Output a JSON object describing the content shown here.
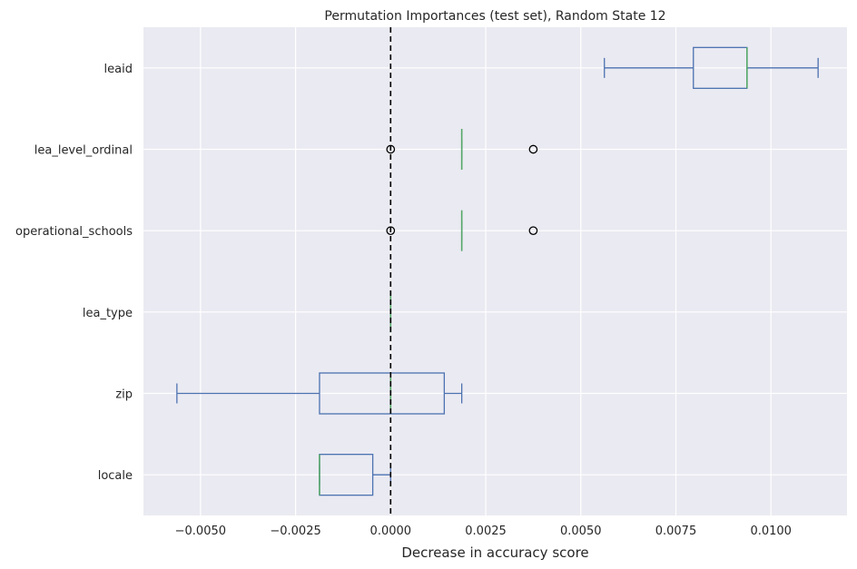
{
  "chart_data": {
    "type": "boxplot",
    "orientation": "horizontal",
    "title": "Permutation Importances (test set), Random State 12",
    "xlabel": "Decrease in accuracy score",
    "ylabel": "",
    "xlim": [
      -0.0065,
      0.012
    ],
    "xticks": [
      -0.005,
      -0.0025,
      0.0,
      0.0025,
      0.005,
      0.0075,
      0.01
    ],
    "xtick_labels": [
      "−0.0050",
      "−0.0025",
      "0.0000",
      "0.0025",
      "0.0050",
      "0.0075",
      "0.0100"
    ],
    "grid": true,
    "reference_line": {
      "x": 0.0,
      "style": "dashed",
      "color": "#000000"
    },
    "colors": {
      "background": "#EAEAF2",
      "box": "#4C72B0",
      "median": "#55A868",
      "grid": "#FFFFFF"
    },
    "categories": [
      "leaid",
      "lea_level_ordinal",
      "operational_schools",
      "lea_type",
      "zip",
      "locale"
    ],
    "boxes": [
      {
        "name": "leaid",
        "whislo": 0.00562,
        "q1": 0.00796,
        "med": 0.00937,
        "q3": 0.00937,
        "whishi": 0.01124,
        "fliers": []
      },
      {
        "name": "lea_level_ordinal",
        "whislo": 0.00187,
        "q1": 0.00187,
        "med": 0.00187,
        "q3": 0.00187,
        "whishi": 0.00187,
        "fliers": [
          0.0,
          0.00375
        ]
      },
      {
        "name": "operational_schools",
        "whislo": 0.00187,
        "q1": 0.00187,
        "med": 0.00187,
        "q3": 0.00187,
        "whishi": 0.00187,
        "fliers": [
          0.0,
          0.00375
        ]
      },
      {
        "name": "lea_type",
        "whislo": 0.0,
        "q1": 0.0,
        "med": 0.0,
        "q3": 0.0,
        "whishi": 0.0,
        "fliers": []
      },
      {
        "name": "zip",
        "whislo": -0.00562,
        "q1": -0.00187,
        "med": 0.0,
        "q3": 0.00141,
        "whishi": 0.00187,
        "fliers": []
      },
      {
        "name": "locale",
        "whislo": -0.00187,
        "q1": -0.00187,
        "med": -0.00187,
        "q3": -0.00047,
        "whishi": 0.0,
        "fliers": []
      }
    ]
  }
}
